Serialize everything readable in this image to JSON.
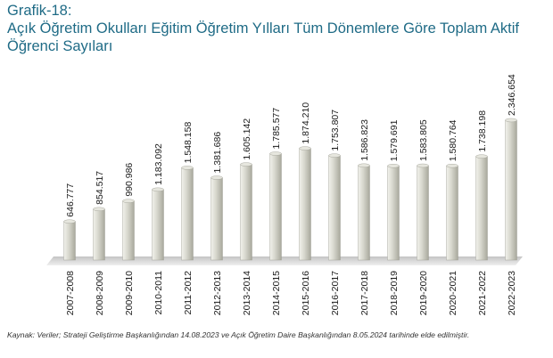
{
  "header": {
    "figure_label": "Grafik-18:",
    "title": "Açık Öğretim Okulları Eğitim Öğretim Yılları Tüm Dönemlere Göre Toplam Aktif Öğrenci Sayıları"
  },
  "chart_data": {
    "type": "bar",
    "title": "Açık Öğretim Okulları Eğitim Öğretim Yılları Tüm Dönemlere Göre Toplam Aktif Öğrenci Sayıları",
    "categories": [
      "2007-2008",
      "2008-2009",
      "2009-2010",
      "2010-2011",
      "2011-2012",
      "2012-2013",
      "2013-2014",
      "2014-2015",
      "2015-2016",
      "2016-2017",
      "2017-2018",
      "2018-2019",
      "2019-2020",
      "2020-2021",
      "2021-2022",
      "2022-2023"
    ],
    "values": [
      646777,
      854517,
      990986,
      1183092,
      1548158,
      1381686,
      1605142,
      1785577,
      1874210,
      1753807,
      1586823,
      1579691,
      1583805,
      1580764,
      1738198,
      2346654
    ],
    "value_labels": [
      "646.777",
      "854.517",
      "990.986",
      "1.183.092",
      "1.548.158",
      "1.381.686",
      "1.605.142",
      "1.785.577",
      "1.874.210",
      "1.753.807",
      "1.586.823",
      "1.579.691",
      "1.583.805",
      "1.580.764",
      "1.738.198",
      "2.346.654"
    ],
    "xlabel": "",
    "ylabel": "",
    "ylim": [
      0,
      2600000
    ],
    "grid": false,
    "colors": {
      "bar_light": "#f2f2ec",
      "bar_mid": "#d6d6cc",
      "bar_dark": "#a8a89c",
      "floor": "#d2d2d2"
    }
  },
  "source_note": "Kaynak: Veriler; Strateji Geliştirme Başkanlığından 14.08.2023 ve Açık Öğretim Daire Başkanlığından 8.05.2024 tarihinde elde edilmiştir."
}
